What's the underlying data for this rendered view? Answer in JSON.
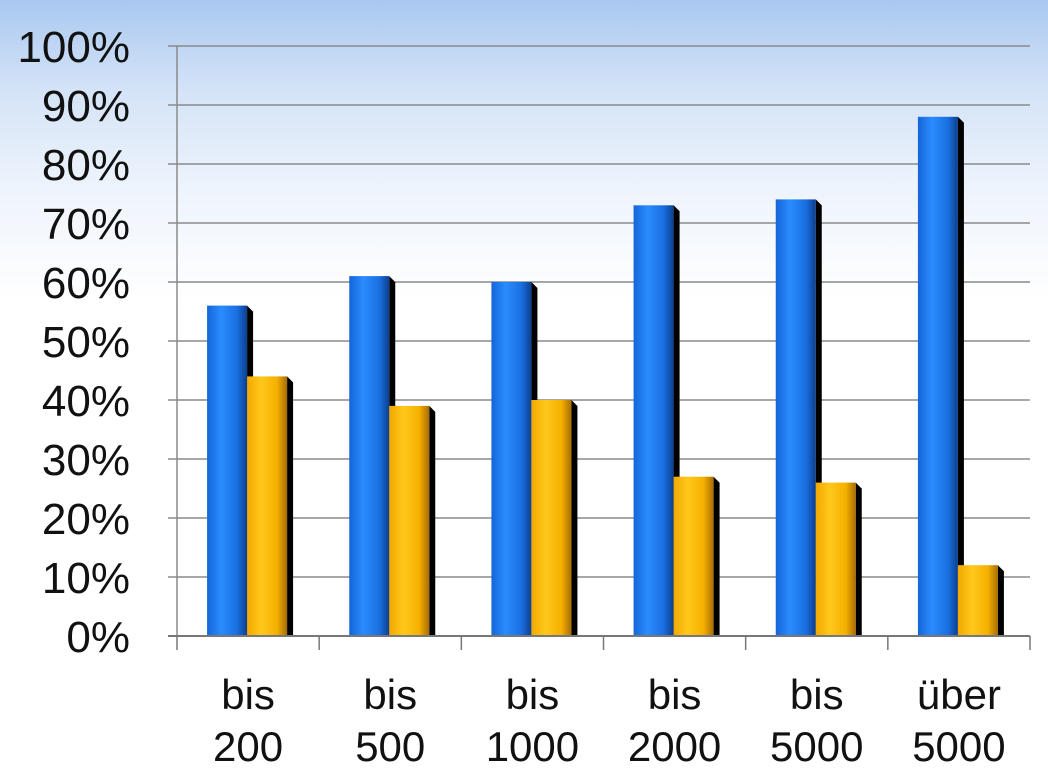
{
  "chart_data": {
    "type": "bar",
    "categories": [
      [
        "bis",
        "200"
      ],
      [
        "bis",
        "500"
      ],
      [
        "bis",
        "1000"
      ],
      [
        "bis",
        "2000"
      ],
      [
        "bis",
        "5000"
      ],
      [
        "über",
        "5000"
      ]
    ],
    "series": [
      {
        "values": [
          56,
          61,
          60,
          73,
          74,
          88
        ],
        "color": "#1e7ff0"
      },
      {
        "values": [
          44,
          39,
          40,
          27,
          26,
          12
        ],
        "color": "#ffbe0a"
      }
    ],
    "y_ticks": [
      "0%",
      "10%",
      "20%",
      "30%",
      "40%",
      "50%",
      "60%",
      "70%",
      "80%",
      "90%",
      "100%"
    ],
    "ylim": [
      0,
      100
    ],
    "grid": true,
    "legend": "none",
    "title": "",
    "xlabel": "",
    "ylabel": ""
  }
}
